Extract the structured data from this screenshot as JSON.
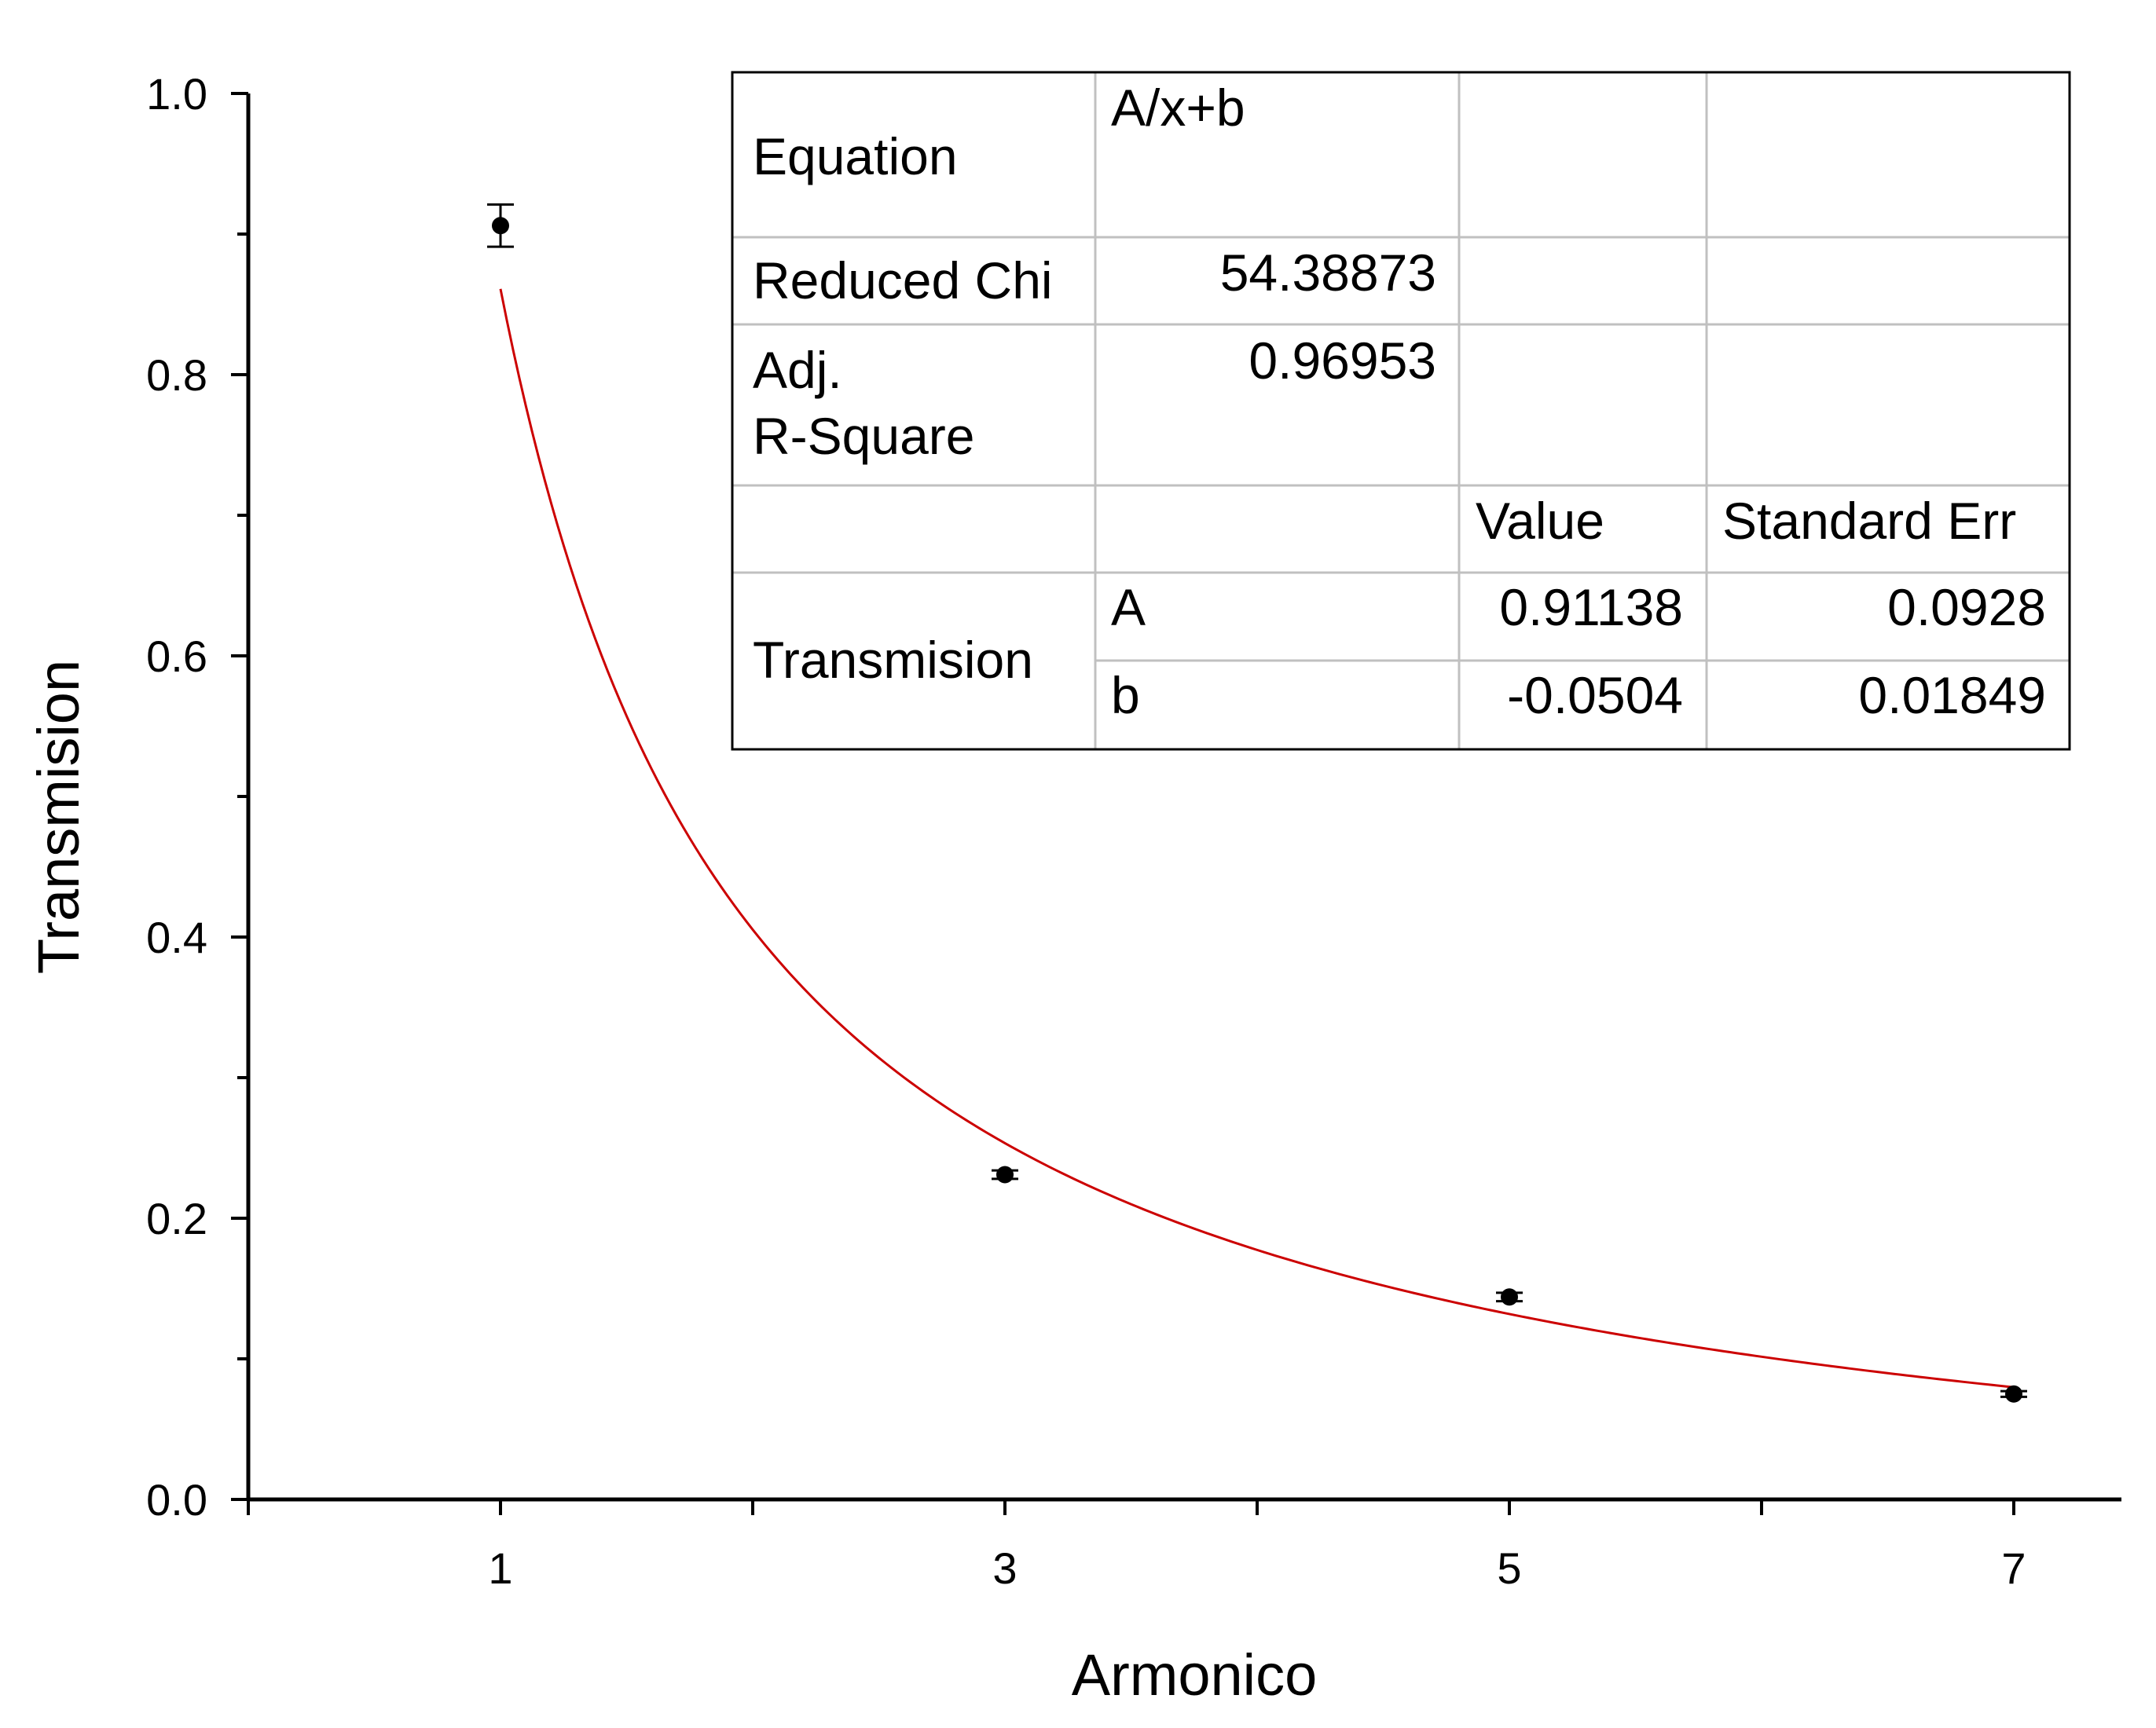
{
  "chart_data": {
    "type": "scatter",
    "xlabel": "Armonico",
    "ylabel": "Transmision",
    "xlim": [
      0,
      8
    ],
    "ylim": [
      0,
      1
    ],
    "xticks_major": [
      1,
      3,
      5,
      7
    ],
    "xticks_minor": [
      2,
      4,
      6
    ],
    "yticks_major": [
      "0.0",
      "0.2",
      "0.4",
      "0.6",
      "0.8",
      "1.0"
    ],
    "yticks_minor": [
      0.1,
      0.3,
      0.5,
      0.7,
      0.9
    ],
    "grid": false,
    "points": [
      {
        "x": 1,
        "y": 0.906,
        "yerr": 0.015
      },
      {
        "x": 3,
        "y": 0.231,
        "yerr": 0.003
      },
      {
        "x": 5,
        "y": 0.144,
        "yerr": 0.003
      },
      {
        "x": 7,
        "y": 0.075,
        "yerr": 0.002
      }
    ],
    "fit": {
      "equation": "A/x+b",
      "A": 0.91138,
      "b": -0.0504,
      "x_range": [
        1,
        7
      ],
      "color": "#cc0000"
    },
    "marker_color": "#000000"
  },
  "fit_table": {
    "equation_label": "Equation",
    "equation_value": "A/x+b",
    "chi_label": "Reduced Chi",
    "chi_value": "54.38873",
    "r2_label_line1": "Adj.",
    "r2_label_line2": "R-Square",
    "r2_value": "0.96953",
    "value_header": "Value",
    "stderr_header": "Standard Err",
    "row_label": "Transmision",
    "param_a_name": "A",
    "param_a_value": "0.91138",
    "param_a_err": "0.0928",
    "param_b_name": "b",
    "param_b_value": "-0.0504",
    "param_b_err": "0.01849",
    "border_color": "#c0c0c0"
  }
}
